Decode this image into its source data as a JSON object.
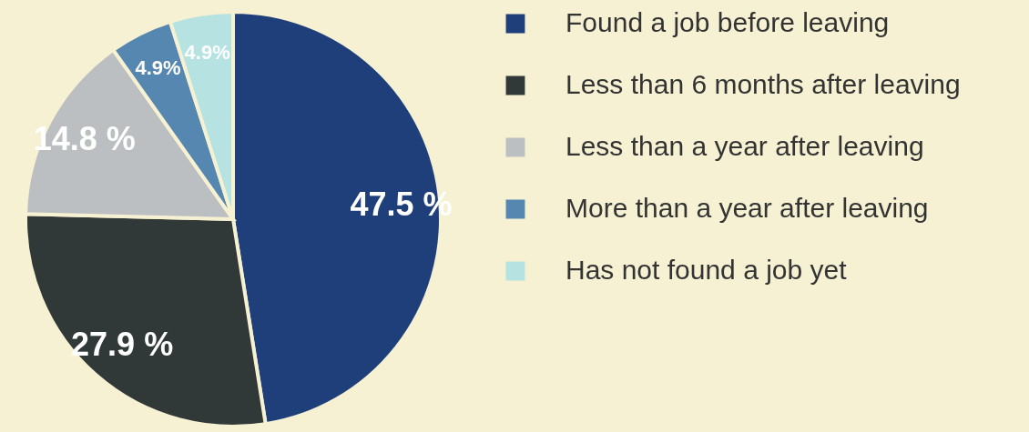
{
  "chart_data": {
    "type": "pie",
    "categories": [
      "Found a job before leaving",
      "Less than 6 months after leaving",
      "Less than a year after leaving",
      "More than a year after leaving",
      "Has not found a job yet"
    ],
    "values": [
      47.5,
      27.9,
      14.8,
      4.9,
      4.9
    ],
    "value_labels": [
      "47.5 %",
      "27.9 %",
      "14.8 %",
      "4.9%",
      "4.9%"
    ],
    "colors": [
      "#1f3f7b",
      "#313838",
      "#bcbfc1",
      "#5687b0",
      "#b6e2e2"
    ],
    "legend": "right"
  }
}
